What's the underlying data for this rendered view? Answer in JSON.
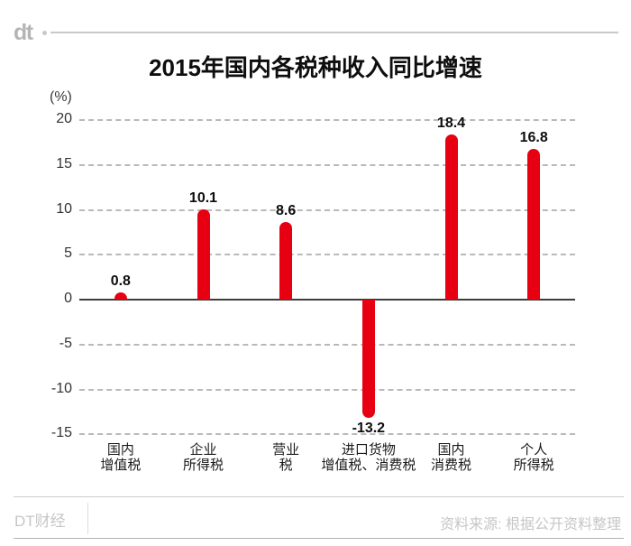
{
  "header": {
    "logo": "dt"
  },
  "title": "2015年国内各税种收入同比增速",
  "unit_label": "(%)",
  "chart_data": {
    "type": "bar",
    "title": "2015年国内各税种收入同比增速",
    "categories": [
      "国内\n增值税",
      "企业\n所得税",
      "营业\n税",
      "进口货物\n增值税、消费税",
      "国内\n消费税",
      "个人\n所得税"
    ],
    "values": [
      0.8,
      10.1,
      8.6,
      -13.2,
      18.4,
      16.8
    ],
    "value_labels": [
      "0.8",
      "10.1",
      "8.6",
      "-13.2",
      "18.4",
      "16.8"
    ],
    "ylabel": "(%)",
    "yticks": [
      20,
      15,
      10,
      5,
      0,
      -5,
      -10,
      -15
    ],
    "ylim": [
      -15,
      20
    ],
    "grid": "horizontal dashed, solid zero line",
    "legend": "none",
    "bar_color": "#e60012",
    "text_color": "#0d0d0d"
  },
  "footer": {
    "brand": "DT财经",
    "source": "资料来源: 根据公开资料整理"
  }
}
